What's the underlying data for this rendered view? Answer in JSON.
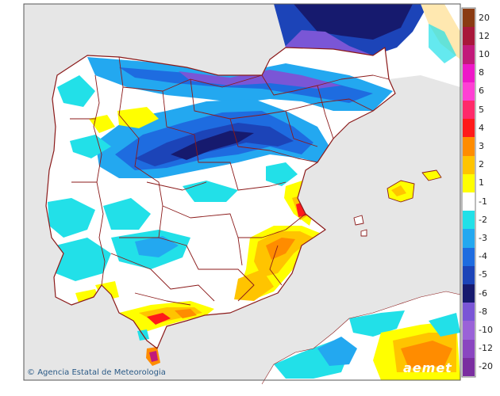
{
  "credit": {
    "icon": "copyright-icon",
    "text": "Agencia Estatal de Meteorologia"
  },
  "brand": {
    "logo_text": "aemet"
  },
  "legend": {
    "entries": [
      {
        "label": "20",
        "color": "#8a3b12"
      },
      {
        "label": "12",
        "color": "#a8183a"
      },
      {
        "label": "10",
        "color": "#c21a7a"
      },
      {
        "label": "8",
        "color": "#ee18c8"
      },
      {
        "label": "6",
        "color": "#ff3fd4"
      },
      {
        "label": "5",
        "color": "#ff2a6a"
      },
      {
        "label": "4",
        "color": "#ff1a1a"
      },
      {
        "label": "3",
        "color": "#ff8c00"
      },
      {
        "label": "2",
        "color": "#ffc400"
      },
      {
        "label": "1",
        "color": "#ffff00"
      },
      {
        "label": "-1",
        "color": "#ffffff"
      },
      {
        "label": "-2",
        "color": "#22e0e8"
      },
      {
        "label": "-3",
        "color": "#23a8f0"
      },
      {
        "label": "-4",
        "color": "#1e6ce0"
      },
      {
        "label": "-5",
        "color": "#1c44b8"
      },
      {
        "label": "-6",
        "color": "#161a6e"
      },
      {
        "label": "-8",
        "color": "#7a56d6"
      },
      {
        "label": "-10",
        "color": "#9a62d8"
      },
      {
        "label": "-12",
        "color": "#8a46c0"
      },
      {
        "label": "-20",
        "color": "#7a2ea0"
      }
    ]
  },
  "colors": {
    "sea": "#e6e6e6",
    "land": "#ffffff",
    "borders": "#8b1a1a"
  }
}
